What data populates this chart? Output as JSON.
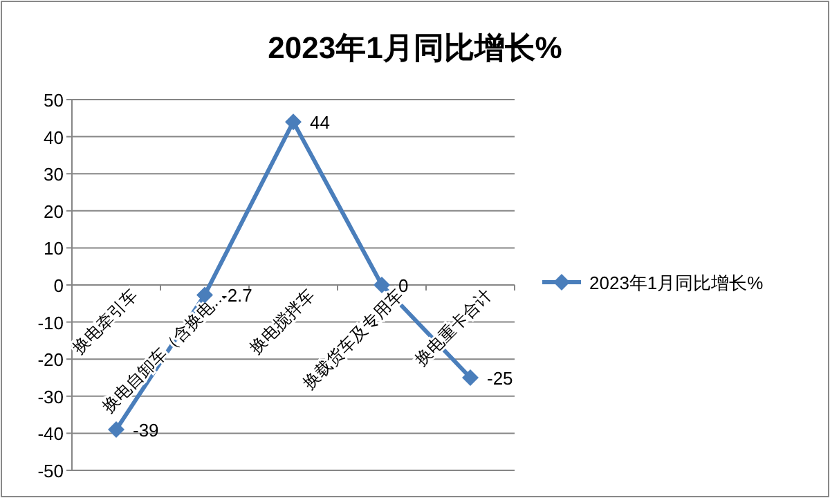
{
  "chart_data": {
    "type": "line",
    "title": "2023年1月同比增长%",
    "categories": [
      "换电牵引车",
      "换电自卸车（含换电…",
      "换电搅拌车",
      "换载货车及专用车",
      "换电重卡合计"
    ],
    "series": [
      {
        "name": "2023年1月同比增长%",
        "color": "#4a7ebb",
        "values": [
          -39,
          -2.7,
          44,
          0,
          -25
        ]
      }
    ],
    "ylim": [
      -50,
      50
    ],
    "yticks": [
      -50,
      -40,
      -30,
      -20,
      -10,
      0,
      10,
      20,
      30,
      40,
      50
    ],
    "grid": "y",
    "legend": "right",
    "marker": "diamond",
    "line_style": "solid",
    "data_labels": true
  }
}
